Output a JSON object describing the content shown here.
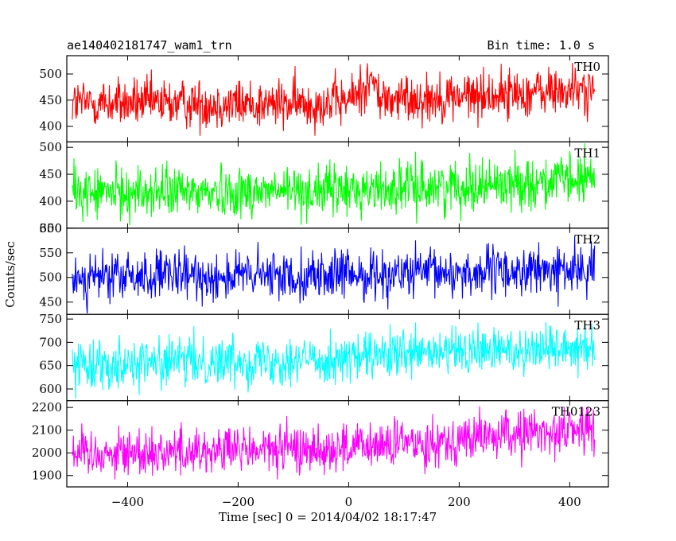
{
  "chart_data": {
    "type": "line",
    "title_left": "ae140402181747_wam1_trn",
    "title_right": "Bin time: 1.0 s",
    "xlabel": "Time [sec] 0 = 2014/04/02 18:17:47",
    "ylabel": "Counts/sec",
    "xlim": [
      -510,
      470
    ],
    "x_range": [
      -500,
      445
    ],
    "x_ticks": [
      -400,
      -200,
      0,
      200,
      400
    ],
    "grid": false,
    "panels": [
      {
        "name": "TH0",
        "color": "#ff0000",
        "ylim": [
          370,
          535
        ],
        "y_ticks": [
          400,
          450,
          500
        ],
        "trend": [
          [
            -500,
            445
          ],
          [
            -100,
            442
          ],
          [
            0,
            448
          ],
          [
            40,
            490
          ],
          [
            60,
            450
          ],
          [
            445,
            470
          ]
        ],
        "noise": 38
      },
      {
        "name": "TH1",
        "color": "#00ff00",
        "ylim": [
          350,
          510
        ],
        "y_ticks": [
          350,
          400,
          450,
          500
        ],
        "trend": [
          [
            -500,
            415
          ],
          [
            0,
            420
          ],
          [
            445,
            440
          ]
        ],
        "noise": 38
      },
      {
        "name": "TH2",
        "color": "#0000ff",
        "ylim": [
          425,
          600
        ],
        "y_ticks": [
          450,
          500,
          550,
          600
        ],
        "trend": [
          [
            -500,
            500
          ],
          [
            0,
            505
          ],
          [
            445,
            515
          ]
        ],
        "noise": 40
      },
      {
        "name": "TH3",
        "color": "#00ffff",
        "ylim": [
          575,
          760
        ],
        "y_ticks": [
          600,
          650,
          700,
          750
        ],
        "trend": [
          [
            -500,
            655
          ],
          [
            0,
            665
          ],
          [
            445,
            695
          ]
        ],
        "noise": 42
      },
      {
        "name": "TH0123",
        "color": "#ff00ff",
        "ylim": [
          1850,
          2230
        ],
        "y_ticks": [
          1900,
          2000,
          2100,
          2200
        ],
        "trend": [
          [
            -500,
            2000
          ],
          [
            0,
            2020
          ],
          [
            445,
            2110
          ]
        ],
        "noise": 85
      }
    ]
  }
}
